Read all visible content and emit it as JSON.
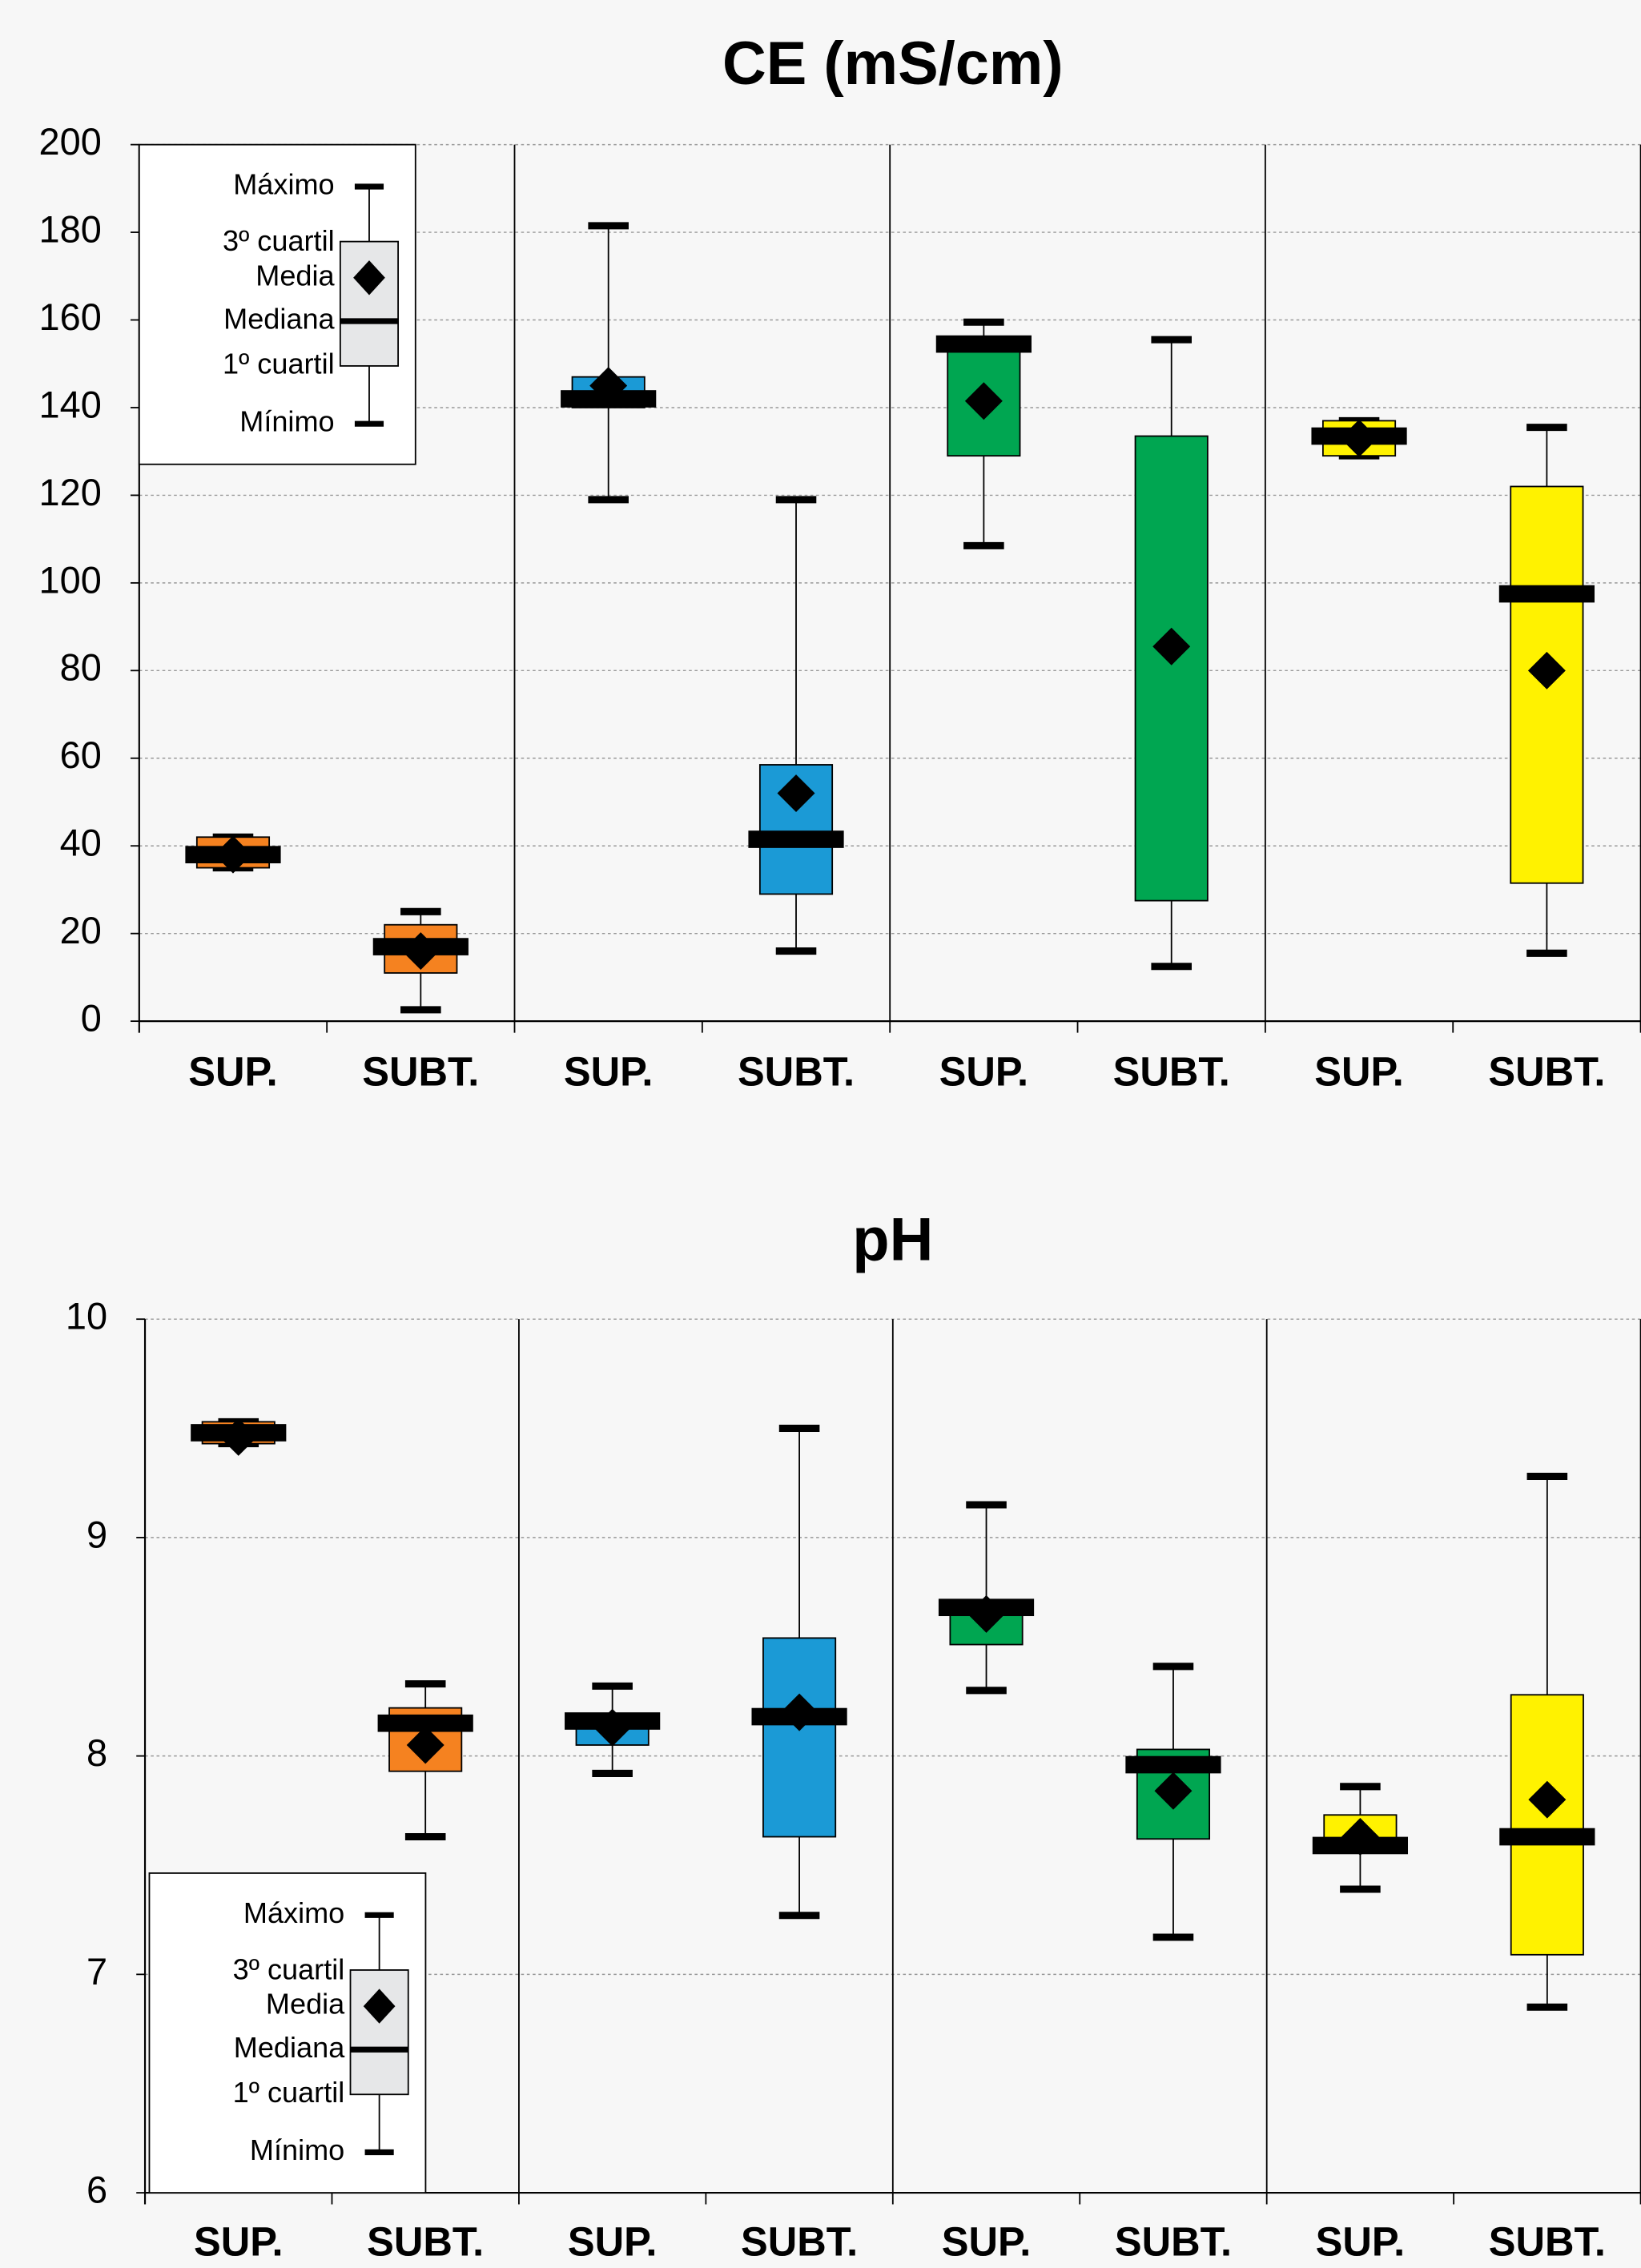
{
  "chart_data": [
    {
      "type": "box",
      "title": "CE (mS/cm)",
      "categories": [
        "SUP.",
        "SUBT.",
        "SUP.",
        "SUBT.",
        "SUP.",
        "SUBT.",
        "SUP.",
        "SUBT."
      ],
      "boxes": [
        {
          "min": 35,
          "q1": 35,
          "median": 38,
          "mean": 38,
          "q3": 42,
          "max": 42,
          "color": "#f58220"
        },
        {
          "min": 2.6,
          "q1": 11,
          "median": 17,
          "mean": 16,
          "q3": 22,
          "max": 25,
          "color": "#f58220"
        },
        {
          "min": 119,
          "q1": 140,
          "median": 142,
          "mean": 145,
          "q3": 147,
          "max": 181.5,
          "color": "#1b9ad6"
        },
        {
          "min": 16,
          "q1": 29,
          "median": 41.5,
          "mean": 52,
          "q3": 58.5,
          "max": 119,
          "color": "#1b9ad6"
        },
        {
          "min": 108.5,
          "q1": 129,
          "median": 154.5,
          "mean": 141.5,
          "q3": 155,
          "max": 159.5,
          "color": "#00a651"
        },
        {
          "min": 12.5,
          "q1": 27.5,
          "median": null,
          "mean": 85.5,
          "q3": 133.5,
          "max": 155.5,
          "color": "#00a651"
        },
        {
          "min": 129,
          "q1": 129,
          "median": 133.5,
          "mean": 133,
          "q3": 137,
          "max": 137,
          "color": "#fff200"
        },
        {
          "min": 15.5,
          "q1": 31.5,
          "median": 97.5,
          "mean": 80,
          "q3": 122,
          "max": 135.5,
          "color": "#fff200"
        }
      ],
      "ylim": [
        0,
        200
      ],
      "yticks": [
        0,
        20,
        40,
        60,
        80,
        100,
        120,
        140,
        160,
        180,
        200
      ],
      "grid": true,
      "legend_position": "upper left",
      "legend_labels": [
        "Máximo",
        "3º cuartil",
        "Media",
        "Mediana",
        "1º cuartil",
        "Mínimo"
      ]
    },
    {
      "type": "box",
      "title": "pH",
      "categories": [
        "SUP.",
        "SUBT.",
        "SUP.",
        "SUBT.",
        "SUP.",
        "SUBT.",
        "SUP.",
        "SUBT."
      ],
      "boxes": [
        {
          "min": 9.43,
          "q1": 9.43,
          "median": 9.48,
          "mean": 9.46,
          "q3": 9.53,
          "max": 9.53,
          "color": "#f58220"
        },
        {
          "min": 7.63,
          "q1": 7.93,
          "median": 8.15,
          "mean": 8.05,
          "q3": 8.22,
          "max": 8.33,
          "color": "#f58220"
        },
        {
          "min": 7.92,
          "q1": 8.05,
          "median": 8.16,
          "mean": 8.13,
          "q3": 8.18,
          "max": 8.32,
          "color": "#1b9ad6"
        },
        {
          "min": 7.27,
          "q1": 7.63,
          "median": 8.18,
          "mean": 8.2,
          "q3": 8.54,
          "max": 9.5,
          "color": "#1b9ad6"
        },
        {
          "min": 8.3,
          "q1": 8.51,
          "median": 8.68,
          "mean": 8.65,
          "q3": 8.7,
          "max": 9.15,
          "color": "#00a651"
        },
        {
          "min": 7.17,
          "q1": 7.62,
          "median": 7.96,
          "mean": 7.84,
          "q3": 8.03,
          "max": 8.41,
          "color": "#00a651"
        },
        {
          "min": 7.39,
          "q1": 7.57,
          "median": 7.59,
          "mean": 7.63,
          "q3": 7.73,
          "max": 7.86,
          "color": "#fff200"
        },
        {
          "min": 6.85,
          "q1": 7.09,
          "median": 7.63,
          "mean": 7.8,
          "q3": 8.28,
          "max": 9.28,
          "color": "#fff200"
        }
      ],
      "ylim": [
        6,
        10
      ],
      "yticks": [
        6,
        7,
        8,
        9,
        10
      ],
      "grid": true,
      "legend_position": "lower left",
      "legend_labels": [
        "Máximo",
        "3º cuartil",
        "Media",
        "Mediana",
        "1º cuartil",
        "Mínimo"
      ]
    }
  ]
}
